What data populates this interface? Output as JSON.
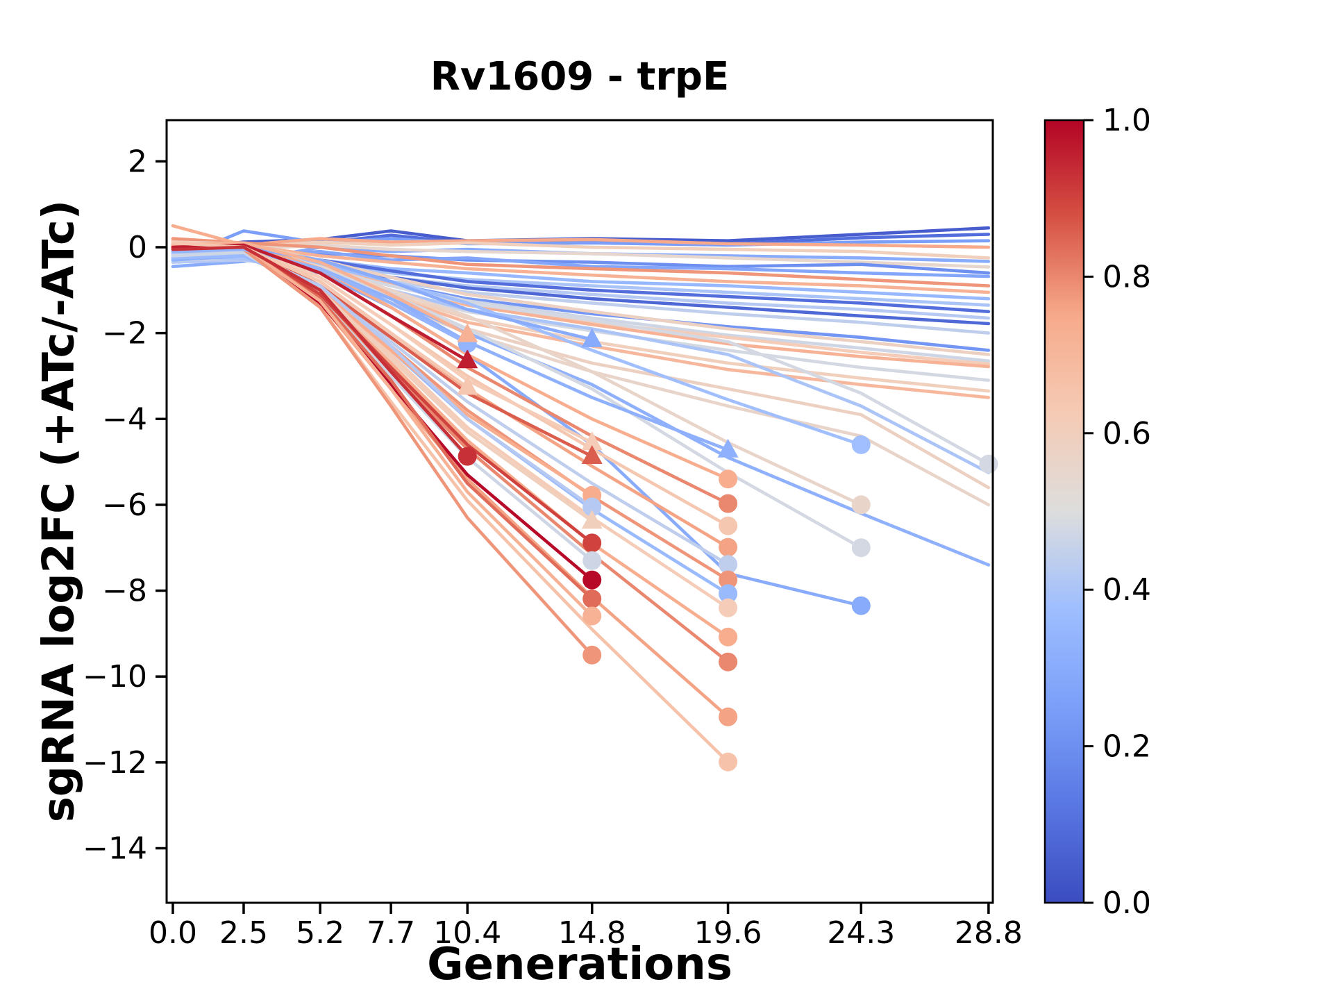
{
  "title": "Rv1609 - trpE",
  "xlabel": "Generations",
  "ylabel": "sgRNA log2FC (+ATc/-ATc)",
  "chart_data": {
    "type": "line",
    "title": "Rv1609 - trpE",
    "xlabel": "Generations",
    "ylabel": "sgRNA log2FC (+ATc/-ATc)",
    "x": [
      0.0,
      2.5,
      5.2,
      7.7,
      10.4,
      14.8,
      19.6,
      24.3,
      28.8
    ],
    "xtick_labels": [
      "0.0",
      "2.5",
      "5.2",
      "7.7",
      "10.4",
      "14.8",
      "19.6",
      "24.3",
      "28.8"
    ],
    "yticks": [
      2,
      0,
      -2,
      -4,
      -6,
      -8,
      -10,
      -12,
      -14
    ],
    "ytick_labels": [
      "2",
      "0",
      "−2",
      "−4",
      "−6",
      "−8",
      "−10",
      "−12",
      "−14"
    ],
    "xlim": [
      -0.22,
      28.95
    ],
    "ylim": [
      -15.27,
      2.96
    ],
    "grid": false,
    "legend": "none",
    "colormap": "coolwarm",
    "colormap_stops": [
      [
        0.0,
        [
          59,
          76,
          192
        ]
      ],
      [
        0.125,
        [
          89,
          119,
          227
        ]
      ],
      [
        0.25,
        [
          123,
          159,
          249
        ]
      ],
      [
        0.375,
        [
          158,
          190,
          255
        ]
      ],
      [
        0.5,
        [
          221,
          221,
          221
        ]
      ],
      [
        0.625,
        [
          245,
          203,
          181
        ]
      ],
      [
        0.75,
        [
          247,
          170,
          139
        ]
      ],
      [
        0.875,
        [
          214,
          82,
          68
        ]
      ],
      [
        1.0,
        [
          180,
          4,
          38
        ]
      ]
    ],
    "colorbar": {
      "min": 0.0,
      "max": 1.0,
      "ticks": [
        0.0,
        0.2,
        0.4,
        0.6,
        0.8,
        1.0
      ],
      "labels": [
        "0.0",
        "0.2",
        "0.4",
        "0.6",
        "0.8",
        "1.0"
      ],
      "position": "right"
    },
    "series": [
      {
        "c": 0.05,
        "m": "none",
        "y": [
          -0.05,
          0.12,
          0.18,
          0.38,
          0.15,
          0.2,
          0.15,
          0.3,
          0.45
        ]
      },
      {
        "c": 0.1,
        "m": "none",
        "y": [
          -0.1,
          0.08,
          0.1,
          0.28,
          0.1,
          0.12,
          0.08,
          0.22,
          0.3
        ]
      },
      {
        "c": 0.25,
        "m": "none",
        "y": [
          -0.3,
          0.38,
          0.1,
          0.2,
          0.08,
          0.1,
          0.05,
          0.12,
          0.15
        ]
      },
      {
        "c": 0.75,
        "m": "none",
        "y": [
          0.15,
          0.05,
          0.2,
          0.12,
          0.15,
          0.18,
          0.08,
          0.05,
          0.0
        ]
      },
      {
        "c": 0.6,
        "m": "none",
        "y": [
          0.1,
          0.0,
          0.12,
          0.05,
          0.1,
          0.0,
          -0.05,
          -0.1,
          -0.25
        ]
      },
      {
        "c": 0.3,
        "m": "none",
        "y": [
          -0.45,
          -0.33,
          0.0,
          -0.1,
          -0.05,
          -0.15,
          -0.2,
          -0.25,
          -0.33
        ]
      },
      {
        "c": 0.55,
        "m": "none",
        "y": [
          0.05,
          -0.05,
          0.05,
          -0.05,
          -0.1,
          -0.15,
          -0.25,
          -0.35,
          -0.46
        ]
      },
      {
        "c": 0.2,
        "m": "none",
        "y": [
          -0.2,
          -0.1,
          -0.15,
          -0.2,
          -0.3,
          -0.35,
          -0.45,
          -0.4,
          -0.6
        ]
      },
      {
        "c": 0.28,
        "m": "none",
        "y": [
          -0.15,
          -0.2,
          -0.1,
          -0.3,
          -0.25,
          -0.45,
          -0.5,
          -0.6,
          -0.68
        ]
      },
      {
        "c": 0.78,
        "m": "none",
        "y": [
          0.2,
          0.1,
          0.0,
          -0.2,
          -0.4,
          -0.5,
          -0.6,
          -0.75,
          -0.9
        ]
      },
      {
        "c": 0.72,
        "m": "none",
        "y": [
          0.0,
          0.05,
          -0.2,
          -0.35,
          -0.5,
          -0.65,
          -0.8,
          -0.9,
          -1.05
        ]
      },
      {
        "c": 0.35,
        "m": "none",
        "y": [
          -0.25,
          -0.15,
          -0.3,
          -0.5,
          -0.6,
          -0.8,
          -0.9,
          -1.05,
          -1.2
        ]
      },
      {
        "c": 0.4,
        "m": "none",
        "y": [
          -0.1,
          -0.25,
          -0.4,
          -0.6,
          -0.75,
          -0.9,
          -1.05,
          -1.2,
          -1.35
        ]
      },
      {
        "c": 0.1,
        "m": "none",
        "y": [
          -0.05,
          0.0,
          -0.3,
          -0.55,
          -0.8,
          -1.0,
          -1.15,
          -1.3,
          -1.5
        ]
      },
      {
        "c": 0.42,
        "m": "none",
        "y": [
          -0.35,
          -0.3,
          -0.5,
          -0.7,
          -0.9,
          -1.1,
          -1.3,
          -1.45,
          -1.65
        ]
      },
      {
        "c": 0.08,
        "m": "none",
        "y": [
          0.0,
          -0.05,
          -0.4,
          -0.7,
          -0.95,
          -1.2,
          -1.4,
          -1.6,
          -1.78
        ]
      },
      {
        "c": 0.44,
        "m": "none",
        "y": [
          -0.2,
          -0.3,
          -0.55,
          -0.8,
          -1.05,
          -1.3,
          -1.55,
          -1.75,
          -2.0
        ]
      },
      {
        "c": 0.22,
        "m": "none",
        "y": [
          -0.1,
          -0.15,
          -0.5,
          -0.85,
          -1.2,
          -1.55,
          -1.85,
          -2.1,
          -2.4
        ]
      },
      {
        "c": 0.58,
        "m": "none",
        "y": [
          0.12,
          0.08,
          -0.3,
          -0.7,
          -1.1,
          -1.5,
          -1.9,
          -2.2,
          -2.5
        ]
      },
      {
        "c": 0.47,
        "m": "none",
        "y": [
          -0.15,
          -0.1,
          -0.45,
          -0.85,
          -1.25,
          -1.65,
          -2.05,
          -2.35,
          -2.65
        ]
      },
      {
        "c": 0.62,
        "m": "none",
        "y": [
          0.08,
          0.02,
          -0.4,
          -0.85,
          -1.3,
          -1.75,
          -2.1,
          -2.45,
          -2.72
        ]
      },
      {
        "c": 0.72,
        "m": "none",
        "y": [
          0.05,
          0.1,
          -0.35,
          -0.85,
          -1.35,
          -1.8,
          -2.25,
          -2.55,
          -2.78
        ]
      },
      {
        "c": 0.48,
        "m": "none",
        "y": [
          -0.3,
          -0.25,
          -0.6,
          -1.05,
          -1.5,
          -1.95,
          -2.4,
          -2.8,
          -3.1
        ]
      },
      {
        "c": 0.6,
        "m": "none",
        "y": [
          0.1,
          0.05,
          -0.5,
          -1.1,
          -1.65,
          -2.2,
          -2.7,
          -3.05,
          -3.35
        ]
      },
      {
        "c": 0.7,
        "m": "none",
        "y": [
          0.0,
          -0.08,
          -0.55,
          -1.15,
          -1.75,
          -2.3,
          -2.85,
          -3.2,
          -3.5
        ]
      },
      {
        "c": 0.48,
        "m": "circle",
        "y": [
          -0.1,
          -0.05,
          -0.5,
          -0.9,
          -1.3,
          -1.7,
          -2.2,
          -3.4,
          -5.05
        ]
      },
      {
        "c": 0.4,
        "m": "none",
        "y": [
          -0.2,
          -0.28,
          -0.55,
          -1.0,
          -1.45,
          -1.9,
          -2.5,
          -3.7,
          -5.25
        ]
      },
      {
        "c": 0.58,
        "m": "none",
        "y": [
          0.05,
          0.0,
          -0.55,
          -1.2,
          -1.9,
          -2.7,
          -3.3,
          -3.9,
          -5.6
        ]
      },
      {
        "c": 0.56,
        "m": "none",
        "y": [
          0.1,
          0.02,
          -0.6,
          -1.3,
          -2.0,
          -2.9,
          -3.7,
          -4.4,
          -6.0
        ]
      },
      {
        "c": 0.32,
        "m": "none",
        "y": [
          -0.3,
          -0.2,
          -0.55,
          -1.2,
          -2.0,
          -3.2,
          -4.9,
          -6.2,
          -7.4
        ]
      },
      {
        "c": 0.38,
        "m": "circle",
        "y": [
          -0.15,
          -0.1,
          -0.4,
          -0.8,
          -1.3,
          -2.4,
          -3.55,
          -4.6
        ]
      },
      {
        "c": 0.56,
        "m": "circle",
        "y": [
          0.08,
          0.0,
          -0.45,
          -1.0,
          -1.6,
          -2.9,
          -4.55,
          -6.0
        ]
      },
      {
        "c": 0.48,
        "m": "circle",
        "y": [
          -0.12,
          -0.18,
          -0.5,
          -1.1,
          -1.9,
          -3.3,
          -5.25,
          -7.0
        ]
      },
      {
        "c": 0.3,
        "m": "circle",
        "y": [
          -0.25,
          -0.2,
          -0.6,
          -1.4,
          -2.5,
          -4.6,
          -7.6,
          -8.35
        ]
      },
      {
        "c": 0.32,
        "m": "triangle",
        "y": [
          -0.1,
          -0.05,
          -0.5,
          -1.2,
          -2.2,
          -3.5,
          -4.72
        ]
      },
      {
        "c": 0.74,
        "m": "circle",
        "y": [
          0.05,
          0.1,
          -0.5,
          -1.4,
          -2.5,
          -4.0,
          -5.4
        ]
      },
      {
        "c": 0.8,
        "m": "circle",
        "y": [
          0.0,
          0.05,
          -0.6,
          -1.6,
          -2.8,
          -4.4,
          -5.97
        ]
      },
      {
        "c": 0.64,
        "m": "circle",
        "y": [
          0.1,
          0.0,
          -0.7,
          -1.8,
          -3.0,
          -4.7,
          -6.49
        ]
      },
      {
        "c": 0.76,
        "m": "circle",
        "y": [
          -0.05,
          0.0,
          -0.8,
          -2.0,
          -3.3,
          -5.1,
          -6.99
        ]
      },
      {
        "c": 0.44,
        "m": "circle",
        "y": [
          -0.1,
          -0.15,
          -0.9,
          -2.2,
          -3.6,
          -5.5,
          -7.39
        ]
      },
      {
        "c": 0.78,
        "m": "circle",
        "y": [
          0.02,
          0.05,
          -0.9,
          -2.3,
          -3.8,
          -5.8,
          -7.75
        ]
      },
      {
        "c": 0.36,
        "m": "circle",
        "y": [
          -0.25,
          -0.2,
          -1.0,
          -2.4,
          -4.0,
          -6.1,
          -8.07
        ]
      },
      {
        "c": 0.62,
        "m": "circle",
        "y": [
          0.05,
          -0.05,
          -1.0,
          -2.5,
          -4.2,
          -6.3,
          -8.4
        ]
      },
      {
        "c": 0.74,
        "m": "circle",
        "y": [
          0.0,
          0.0,
          -1.1,
          -2.7,
          -4.5,
          -6.9,
          -9.08
        ]
      },
      {
        "c": 0.8,
        "m": "circle",
        "y": [
          -0.03,
          0.02,
          -1.15,
          -2.9,
          -4.7,
          -7.15,
          -9.66
        ]
      },
      {
        "c": 0.76,
        "m": "circle",
        "y": [
          0.05,
          0.0,
          -1.3,
          -3.3,
          -5.4,
          -8.15,
          -10.94
        ]
      },
      {
        "c": 0.66,
        "m": "circle",
        "y": [
          0.0,
          -0.05,
          -1.4,
          -3.6,
          -5.9,
          -8.9,
          -11.99
        ]
      },
      {
        "c": 0.3,
        "m": "triangle",
        "y": [
          -0.1,
          0.0,
          -0.3,
          -0.8,
          -1.45,
          -2.15
        ]
      },
      {
        "c": 0.62,
        "m": "triangle",
        "y": [
          0.1,
          0.05,
          -0.7,
          -1.8,
          -3.1,
          -4.55
        ]
      },
      {
        "c": 0.86,
        "m": "triangle",
        "y": [
          0.0,
          -0.05,
          -0.9,
          -2.1,
          -3.4,
          -4.87
        ]
      },
      {
        "c": 0.74,
        "m": "circle",
        "y": [
          0.5,
          0.05,
          -1.0,
          -2.4,
          -3.9,
          -5.78
        ]
      },
      {
        "c": 0.42,
        "m": "circle",
        "y": [
          -0.15,
          -0.1,
          -0.9,
          -2.3,
          -4.0,
          -6.05
        ]
      },
      {
        "c": 0.6,
        "m": "triangle",
        "y": [
          0.08,
          0.0,
          -1.0,
          -2.6,
          -4.3,
          -6.38
        ]
      },
      {
        "c": 0.9,
        "m": "circle",
        "y": [
          -0.02,
          0.02,
          -1.1,
          -2.8,
          -4.6,
          -6.89
        ]
      },
      {
        "c": 0.47,
        "m": "circle",
        "y": [
          -0.2,
          -0.12,
          -1.2,
          -3.0,
          -4.9,
          -7.3
        ]
      },
      {
        "c": 0.99,
        "m": "circle",
        "y": [
          0.0,
          0.05,
          -1.3,
          -3.2,
          -5.3,
          -7.75
        ]
      },
      {
        "c": 0.84,
        "m": "circle",
        "y": [
          0.03,
          -0.02,
          -1.2,
          -3.1,
          -5.5,
          -8.19
        ]
      },
      {
        "c": 0.72,
        "m": "circle",
        "y": [
          -0.05,
          0.0,
          -1.25,
          -3.3,
          -5.7,
          -8.59
        ]
      },
      {
        "c": 0.78,
        "m": "circle",
        "y": [
          0.0,
          -0.05,
          -1.4,
          -3.7,
          -6.3,
          -9.5
        ]
      },
      {
        "c": 0.34,
        "m": "circle",
        "y": [
          -0.1,
          -0.05,
          -0.5,
          -1.3,
          -2.24
        ]
      },
      {
        "c": 0.72,
        "m": "triangle",
        "y": [
          0.05,
          0.1,
          -0.35,
          -1.1,
          -2.03
        ]
      },
      {
        "c": 0.96,
        "m": "triangle",
        "y": [
          0.0,
          0.05,
          -0.6,
          -1.6,
          -2.64
        ]
      },
      {
        "c": 0.64,
        "m": "triangle",
        "y": [
          0.1,
          0.0,
          -0.8,
          -2.0,
          -3.26
        ]
      },
      {
        "c": 0.93,
        "m": "circle",
        "y": [
          -0.05,
          0.0,
          -1.0,
          -2.9,
          -4.87
        ]
      }
    ]
  }
}
